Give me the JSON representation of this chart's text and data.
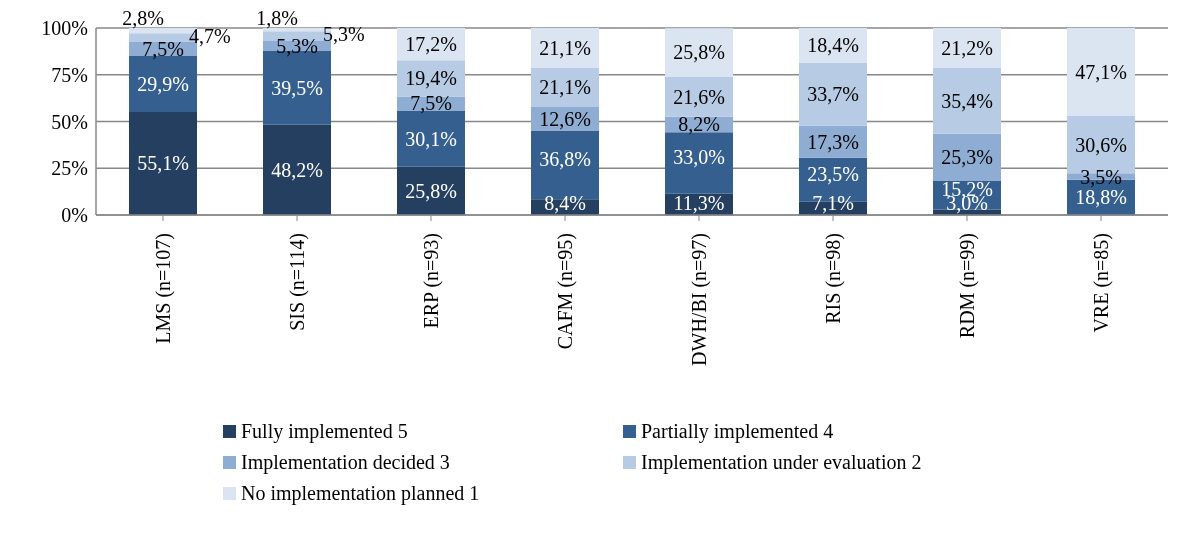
{
  "chart_data": {
    "type": "bar",
    "stacked": true,
    "categories": [
      "LMS (n=107)",
      "SIS (n=114)",
      "ERP (n=93)",
      "CAFM (n=95)",
      "DWH/BI (n=97)",
      "RIS (n=98)",
      "RDM (n=99)",
      "VRE (n=85)"
    ],
    "series": [
      {
        "name": "Fully implemented 5",
        "color": "#253f60",
        "values": [
          55.1,
          48.2,
          25.8,
          8.4,
          11.3,
          7.1,
          3.0,
          0
        ],
        "value_labels": [
          "55,1%",
          "48,2%",
          "25,8%",
          "8,4%",
          "11,3%",
          "7,1%",
          "3,0%",
          null
        ]
      },
      {
        "name": "Partially implemented 4",
        "color": "#355f8f",
        "values": [
          29.9,
          39.5,
          30.1,
          36.8,
          33.0,
          23.5,
          15.2,
          18.8
        ],
        "value_labels": [
          "29,9%",
          "39,5%",
          "30,1%",
          "36,8%",
          "33,0%",
          "23,5%",
          "15,2%",
          "18,8%"
        ]
      },
      {
        "name": "Implementation decided 3",
        "color": "#8fadd3",
        "values": [
          7.5,
          5.3,
          7.5,
          12.6,
          8.2,
          17.3,
          25.3,
          3.5
        ],
        "value_labels": [
          "7,5%",
          "5,3%",
          "7,5%",
          "12,6%",
          "8,2%",
          "17,3%",
          "25,3%",
          "3,5%"
        ]
      },
      {
        "name": "Implementation under evaluation 2",
        "color": "#b7cbe4",
        "values": [
          4.7,
          5.3,
          19.4,
          21.1,
          21.6,
          33.7,
          35.4,
          30.6
        ],
        "value_labels": [
          "4,7%",
          "5,3%",
          "19,4%",
          "21,1%",
          "21,6%",
          "33,7%",
          "35,4%",
          "30,6%"
        ]
      },
      {
        "name": "No implementation planned 1",
        "color": "#dbe4f1",
        "values": [
          2.8,
          1.8,
          17.2,
          21.1,
          25.8,
          18.4,
          21.2,
          47.1
        ],
        "value_labels": [
          "2,8%",
          "1,8%",
          "17,2%",
          "21,1%",
          "25,8%",
          "18,4%",
          "21,2%",
          "47,1%"
        ]
      }
    ],
    "ylim": [
      0,
      100
    ],
    "yticks": [
      {
        "value": 0,
        "label": "0%"
      },
      {
        "value": 25,
        "label": "25%"
      },
      {
        "value": 50,
        "label": "50%"
      },
      {
        "value": 75,
        "label": "75%"
      },
      {
        "value": 100,
        "label": "100%"
      }
    ],
    "grid": "y",
    "legend": "bottom"
  }
}
